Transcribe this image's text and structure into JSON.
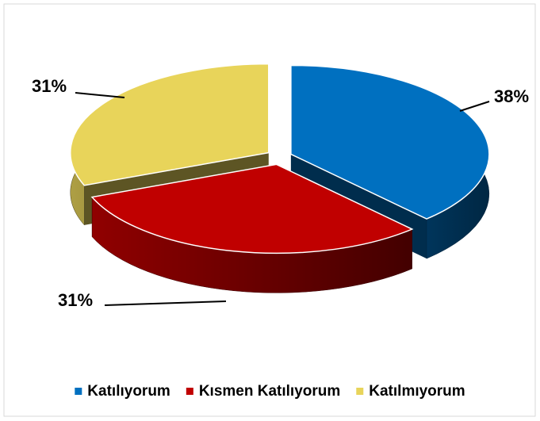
{
  "chart_data": {
    "type": "pie",
    "categories": [
      "Katılıyorum",
      "Kısmen Katılıyorum",
      "Katılmıyorum"
    ],
    "values": [
      38,
      31,
      31
    ],
    "value_labels": [
      "38%",
      "31%",
      "31%"
    ],
    "colors": [
      "#0070c0",
      "#c00000",
      "#e8d45a"
    ],
    "legend": "bottom"
  }
}
